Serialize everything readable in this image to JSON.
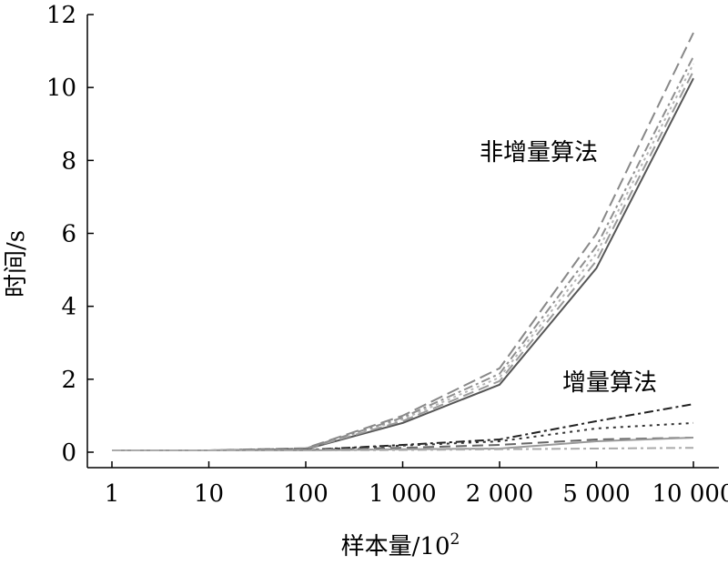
{
  "chart_data": {
    "type": "line",
    "title": "",
    "xlabel": "样本量/10",
    "xlabel_sup": "2",
    "ylabel": "时间/s",
    "categories": [
      "1",
      "10",
      "100",
      "1 000",
      "2 000",
      "5 000",
      "10 000"
    ],
    "ylim": [
      0,
      12
    ],
    "yticks": [
      "0",
      "2",
      "4",
      "6",
      "8",
      "10",
      "12"
    ],
    "grid": false,
    "annotations": [
      {
        "text": "非增量算法"
      },
      {
        "text": "增量算法"
      }
    ],
    "series": [
      {
        "group": "non-incremental",
        "values": [
          0.05,
          0.05,
          0.08,
          0.8,
          1.85,
          5.05,
          10.25
        ],
        "color": "#555555",
        "dash": ""
      },
      {
        "group": "non-incremental",
        "values": [
          0.05,
          0.05,
          0.09,
          0.85,
          1.95,
          5.25,
          10.45
        ],
        "color": "#9a9a9a",
        "dash": "12 6"
      },
      {
        "group": "non-incremental",
        "values": [
          0.05,
          0.05,
          0.1,
          0.9,
          2.05,
          5.45,
          10.65
        ],
        "color": "#b5b5b5",
        "dash": "3 4"
      },
      {
        "group": "non-incremental",
        "values": [
          0.05,
          0.05,
          0.1,
          0.95,
          2.15,
          5.65,
          10.85
        ],
        "color": "#8f8f8f",
        "dash": "10 4 3 4"
      },
      {
        "group": "non-incremental",
        "values": [
          0.05,
          0.05,
          0.11,
          1.0,
          2.3,
          6.0,
          11.5
        ],
        "color": "#888888",
        "dash": "14 6"
      },
      {
        "group": "incremental",
        "values": [
          0.05,
          0.05,
          0.06,
          0.2,
          0.35,
          0.85,
          1.32
        ],
        "color": "#222222",
        "dash": "10 4 3 4"
      },
      {
        "group": "incremental",
        "values": [
          0.05,
          0.05,
          0.06,
          0.18,
          0.3,
          0.65,
          0.8
        ],
        "color": "#333333",
        "dash": "3 5"
      },
      {
        "group": "incremental",
        "values": [
          0.05,
          0.05,
          0.06,
          0.12,
          0.2,
          0.35,
          0.4
        ],
        "color": "#666666",
        "dash": "12 6"
      },
      {
        "group": "incremental",
        "values": [
          0.05,
          0.05,
          0.05,
          0.08,
          0.1,
          0.3,
          0.4
        ],
        "color": "#999999",
        "dash": ""
      },
      {
        "group": "incremental",
        "values": [
          0.05,
          0.05,
          0.05,
          0.06,
          0.08,
          0.1,
          0.12
        ],
        "color": "#aaaaaa",
        "dash": "10 4 3 4"
      }
    ]
  }
}
